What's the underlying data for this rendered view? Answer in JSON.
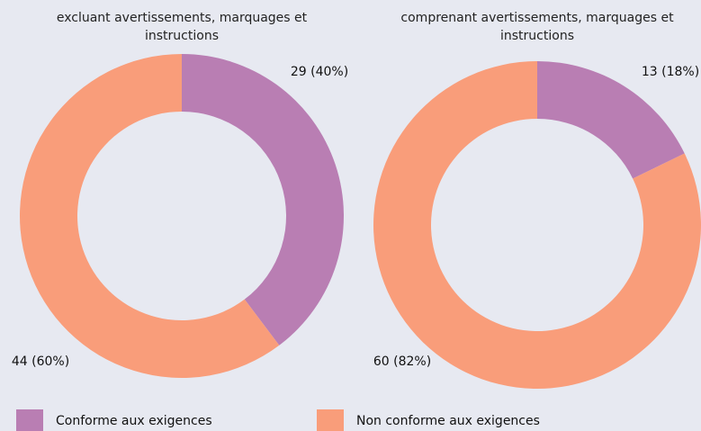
{
  "chart_data": [
    {
      "type": "pie",
      "donut": true,
      "subtitle": "excluant avertissements, marquages et instructions",
      "categories": [
        "Conforme aux exigences",
        "Non conforme aux exigences"
      ],
      "values": [
        29,
        44
      ],
      "value_labels": [
        "29 (40%)",
        "44 (60%)"
      ],
      "colors": [
        "#b97eb3",
        "#f99d7a"
      ]
    },
    {
      "type": "pie",
      "donut": true,
      "subtitle": "comprenant avertissements, marquages et instructions",
      "categories": [
        "Conforme aux exigences",
        "Non conforme aux exigences"
      ],
      "values": [
        13,
        60
      ],
      "value_labels": [
        "13 (18%)",
        "60 (82%)"
      ],
      "colors": [
        "#b97eb3",
        "#f99d7a"
      ]
    }
  ]
}
